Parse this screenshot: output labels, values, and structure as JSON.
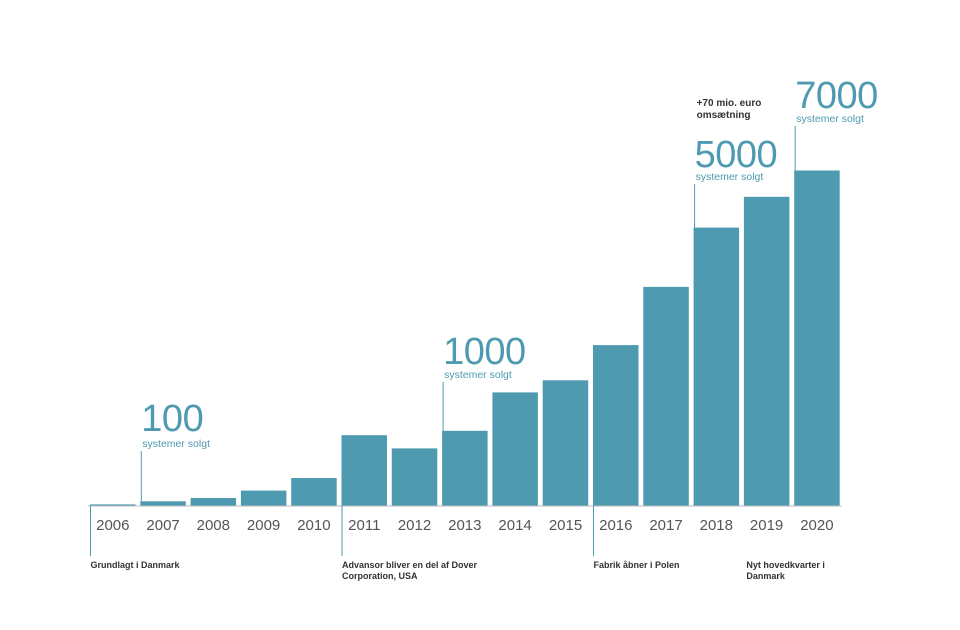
{
  "chart_data": {
    "type": "bar",
    "categories": [
      "2006",
      "2007",
      "2008",
      "2009",
      "2010",
      "2011",
      "2012",
      "2013",
      "2014",
      "2015",
      "2016",
      "2017",
      "2018",
      "2019",
      "2020"
    ],
    "values": [
      50,
      190,
      340,
      680,
      1250,
      3200,
      2600,
      3400,
      5150,
      5700,
      7300,
      9950,
      12650,
      14050,
      15250
    ],
    "ylim": [
      0,
      16000
    ],
    "grid": false,
    "colors": {
      "bar": "#4e9ab0",
      "baseline": "#bbbbbb",
      "tick_text": "#555555",
      "note_text": "#333333",
      "callout_text": "#4e9ab0"
    },
    "milestones": [
      {
        "category": "2007",
        "big": "100",
        "sub": "systemer solgt"
      },
      {
        "category": "2013",
        "big": "1000",
        "sub": "systemer solgt"
      },
      {
        "category": "2018",
        "big": "5000",
        "sub": "systemer solgt",
        "extra": [
          "+70 mio. euro",
          "omsætning"
        ]
      },
      {
        "category": "2020",
        "big": "7000",
        "sub": "systemer solgt"
      }
    ],
    "events": [
      {
        "category": "2006",
        "lines": [
          "Grundlagt  i Danmark"
        ]
      },
      {
        "category": "2011",
        "lines": [
          "Advansor bliver  en del  af Dover",
          "Corporation,  USA"
        ]
      },
      {
        "category": "2016",
        "lines": [
          "Fabrik  åbner i Polen"
        ]
      },
      {
        "category": "2019",
        "lines": [
          "Nyt hovedkvarter i",
          "Danmark"
        ]
      }
    ]
  }
}
